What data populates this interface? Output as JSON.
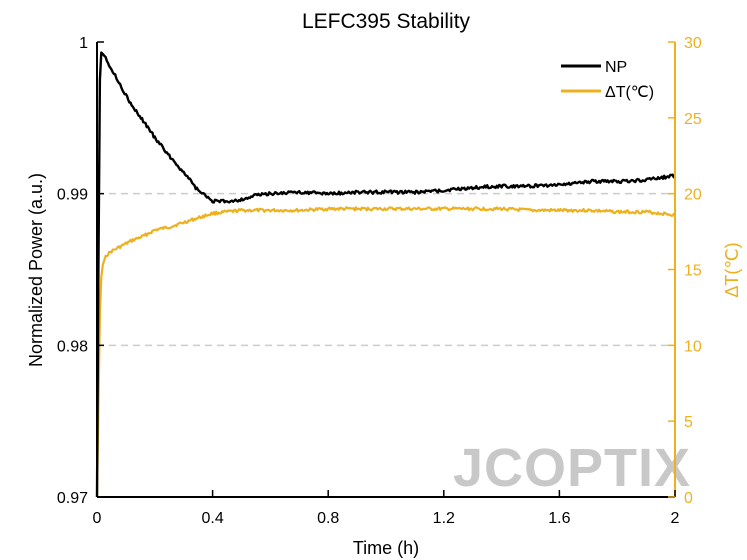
{
  "chart_data": {
    "type": "line",
    "title": "LEFC395 Stability",
    "xlabel": "Time (h)",
    "ylabel_left": "Normalized Power (a.u.)",
    "ylabel_right": "ΔT(℃)",
    "xlim": [
      0,
      2
    ],
    "xticks": [
      0,
      0.4,
      0.8,
      1.2,
      1.6,
      2
    ],
    "xtick_labels": [
      "0",
      "0.4",
      "0.8",
      "1.2",
      "1.6",
      "2"
    ],
    "ylim_left": [
      0.97,
      1.0
    ],
    "yticks_left": [
      0.97,
      0.98,
      0.99,
      1.0
    ],
    "ytick_labels_left": [
      "0.97",
      "0.98",
      "0.99",
      "1"
    ],
    "ylim_right": [
      0,
      30
    ],
    "yticks_right": [
      0,
      5,
      10,
      15,
      20,
      25,
      30
    ],
    "ytick_labels_right": [
      "0",
      "5",
      "10",
      "15",
      "20",
      "25",
      "30"
    ],
    "grid": "dashed horizontal at 0.98 and 0.99",
    "legend_position": "top-right",
    "colors": {
      "np": "#000000",
      "dt": "#EDB120",
      "grid": "#cccccc",
      "watermark": "#c8c8c8"
    },
    "watermark": "JCOPTIX",
    "series": [
      {
        "name": "NP",
        "axis": "left",
        "x": [
          0.0,
          0.005,
          0.01,
          0.015,
          0.02,
          0.03,
          0.05,
          0.08,
          0.12,
          0.16,
          0.2,
          0.25,
          0.3,
          0.35,
          0.38,
          0.4,
          0.45,
          0.5,
          0.55,
          0.6,
          0.7,
          0.8,
          0.9,
          1.0,
          1.1,
          1.2,
          1.3,
          1.4,
          1.5,
          1.6,
          1.7,
          1.8,
          1.9,
          2.0
        ],
        "values": [
          0.97,
          0.985,
          0.9975,
          0.9993,
          0.9992,
          0.999,
          0.9982,
          0.9972,
          0.9958,
          0.9948,
          0.9937,
          0.9925,
          0.9914,
          0.9902,
          0.9898,
          0.9895,
          0.9895,
          0.9896,
          0.9899,
          0.99,
          0.9901,
          0.99,
          0.9901,
          0.9901,
          0.9901,
          0.9902,
          0.9904,
          0.9905,
          0.9905,
          0.9906,
          0.9908,
          0.9908,
          0.9909,
          0.9912
        ]
      },
      {
        "name": "ΔT(℃)",
        "axis": "right",
        "x": [
          0.0,
          0.005,
          0.01,
          0.015,
          0.02,
          0.03,
          0.05,
          0.08,
          0.12,
          0.16,
          0.2,
          0.25,
          0.3,
          0.35,
          0.4,
          0.45,
          0.5,
          0.6,
          0.7,
          0.8,
          0.9,
          1.0,
          1.1,
          1.2,
          1.3,
          1.4,
          1.5,
          1.6,
          1.7,
          1.8,
          1.9,
          2.0
        ],
        "values": [
          0.0,
          6.0,
          12.0,
          14.5,
          15.3,
          15.9,
          16.2,
          16.5,
          16.9,
          17.2,
          17.6,
          17.8,
          18.1,
          18.4,
          18.7,
          18.8,
          18.9,
          18.9,
          18.9,
          19.0,
          19.0,
          19.0,
          19.0,
          19.0,
          19.0,
          19.0,
          18.9,
          18.9,
          18.9,
          18.8,
          18.8,
          18.6
        ]
      }
    ]
  }
}
